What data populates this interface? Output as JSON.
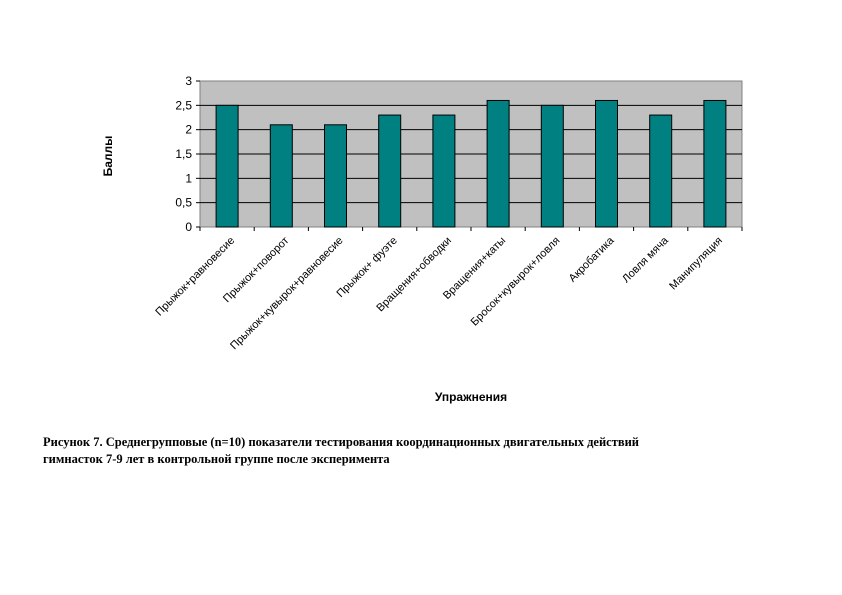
{
  "chart_data": {
    "type": "bar",
    "title": "",
    "xlabel": "Упражнения",
    "ylabel": "Баллы",
    "ylim": [
      0,
      3
    ],
    "yticks": [
      "0",
      "0,5",
      "1",
      "1,5",
      "2",
      "2,5",
      "3"
    ],
    "categories": [
      "Прыжок+равновесие",
      "Прыжок+поворот",
      "Прыжок+кувырок+равновесие",
      "Прыжок+ фуэте",
      "Вращения+обводки",
      "Вращения+каты",
      "Бросок+кувырок+ловля",
      "Акробатика",
      "Ловля мяча",
      "Манипуляция"
    ],
    "values": [
      2.5,
      2.1,
      2.1,
      2.3,
      2.3,
      2.6,
      2.5,
      2.6,
      2.3,
      2.6
    ],
    "grid": true,
    "bar_color": "#008080",
    "plot_background": "#c0c0c0"
  },
  "caption": {
    "line1": "Рисунок 7.  Среднегрупповые (n=10) показатели тестирования координационных двигательных действий",
    "line2": "гимнасток 7-9 лет в контрольной группе после эксперимента"
  }
}
